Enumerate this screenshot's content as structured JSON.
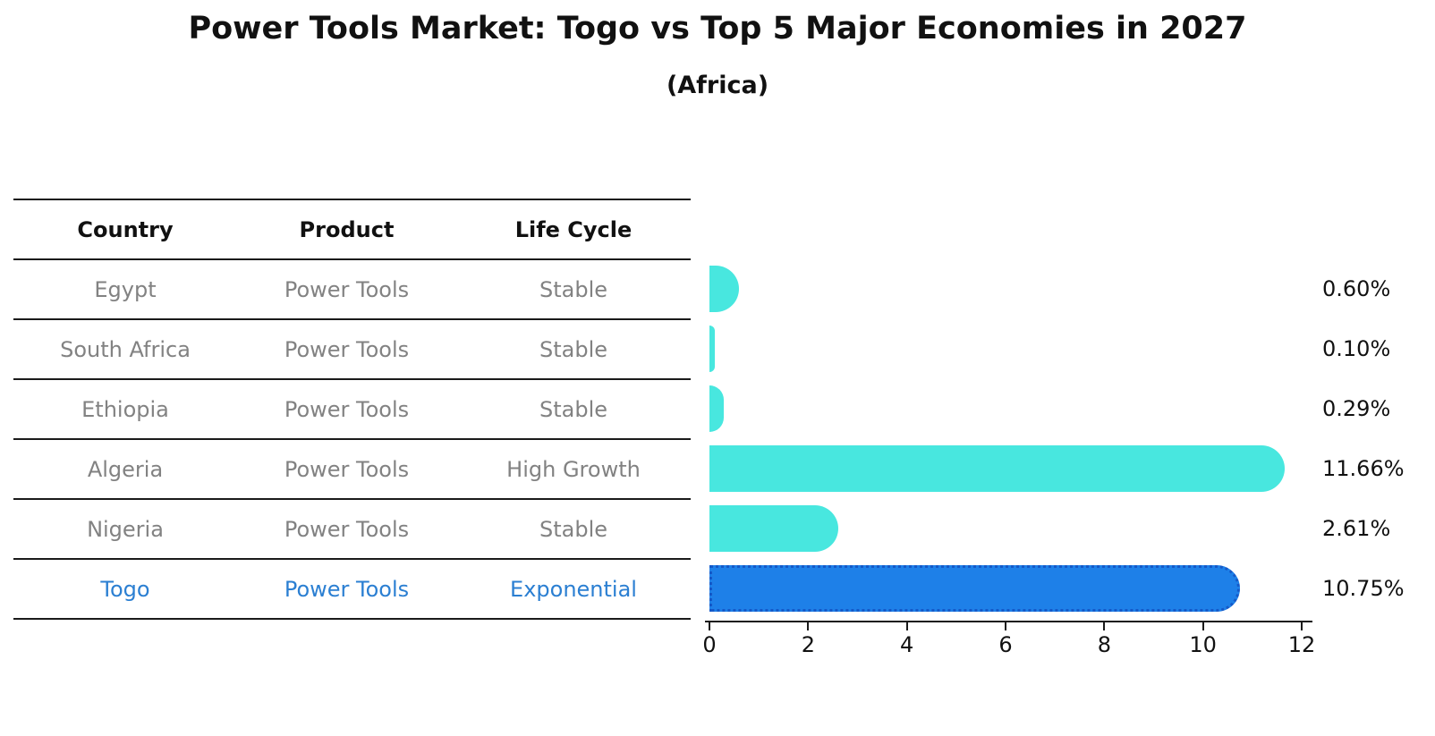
{
  "title": "Power Tools Market: Togo vs Top 5 Major Economies in 2027",
  "subtitle": "(Africa)",
  "table": {
    "headers": [
      "Country",
      "Product",
      "Life Cycle"
    ],
    "rows": [
      {
        "country": "Egypt",
        "product": "Power Tools",
        "life_cycle": "Stable",
        "highlight": false
      },
      {
        "country": "South Africa",
        "product": "Power Tools",
        "life_cycle": "Stable",
        "highlight": false
      },
      {
        "country": "Ethiopia",
        "product": "Power Tools",
        "life_cycle": "Stable",
        "highlight": false
      },
      {
        "country": "Algeria",
        "product": "Power Tools",
        "life_cycle": "High Growth",
        "highlight": false
      },
      {
        "country": "Nigeria",
        "product": "Power Tools",
        "life_cycle": "Stable",
        "highlight": false
      },
      {
        "country": "Togo",
        "product": "Power Tools",
        "life_cycle": "Exponential",
        "highlight": true
      }
    ]
  },
  "chart_data": {
    "type": "bar",
    "orientation": "horizontal",
    "title": "Power Tools Market: Togo vs Top 5 Major Economies in 2027",
    "subtitle": "(Africa)",
    "categories": [
      "Egypt",
      "South Africa",
      "Ethiopia",
      "Algeria",
      "Nigeria",
      "Togo"
    ],
    "values": [
      0.6,
      0.1,
      0.29,
      11.66,
      2.61,
      10.75
    ],
    "value_labels": [
      "0.60%",
      "0.10%",
      "0.29%",
      "11.66%",
      "2.61%",
      "10.75%"
    ],
    "xlabel": "",
    "ylabel": "",
    "xlim": [
      0,
      12
    ],
    "xticks": [
      0,
      2,
      4,
      6,
      8,
      10,
      12
    ],
    "xtick_labels": [
      "0",
      "2",
      "4",
      "6",
      "8",
      "10",
      "12"
    ],
    "grid": false,
    "legend": false,
    "highlight_index": 5,
    "colors": {
      "default_bar": "#48E7DF",
      "highlight_bar": "#1E80E8",
      "highlight_border": "#1559C8",
      "highlight_text": "#2B7FD2",
      "table_text": "#828282",
      "axis": "#1a1a1a"
    }
  }
}
